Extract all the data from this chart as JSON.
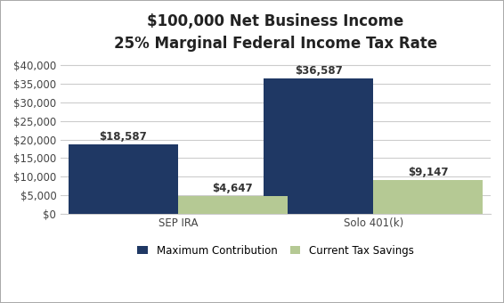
{
  "title_line1": "$100,000 Net Business Income",
  "title_line2": "25% Marginal Federal Income Tax Rate",
  "categories": [
    "SEP IRA",
    "Solo 401(k)"
  ],
  "max_contribution": [
    18587,
    36587
  ],
  "tax_savings": [
    4647,
    9147
  ],
  "bar_color_contribution": "#1F3864",
  "bar_color_savings": "#B5C994",
  "bar_width": 0.28,
  "ylim": [
    0,
    42000
  ],
  "yticks": [
    0,
    5000,
    10000,
    15000,
    20000,
    25000,
    30000,
    35000,
    40000
  ],
  "legend_labels": [
    "Maximum Contribution",
    "Current Tax Savings"
  ],
  "background_color": "#FFFFFF",
  "grid_color": "#CCCCCC",
  "border_color": "#AAAAAA",
  "title_fontsize": 12,
  "tick_fontsize": 8.5,
  "legend_fontsize": 8.5,
  "annotation_fontsize": 8.5,
  "x_positions": [
    0.25,
    0.75
  ]
}
